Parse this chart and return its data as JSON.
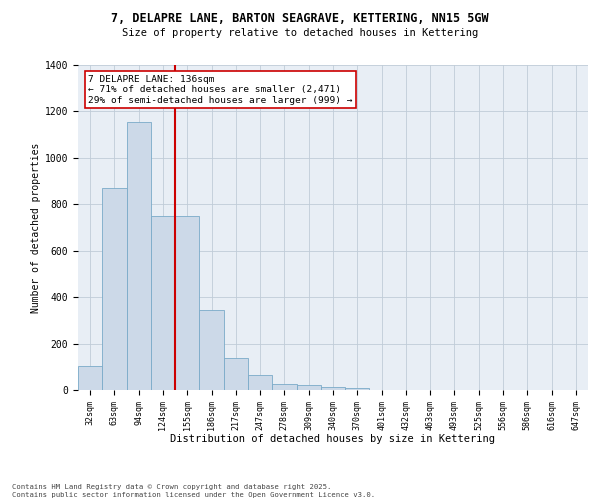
{
  "title_line1": "7, DELAPRE LANE, BARTON SEAGRAVE, KETTERING, NN15 5GW",
  "title_line2": "Size of property relative to detached houses in Kettering",
  "xlabel": "Distribution of detached houses by size in Kettering",
  "ylabel": "Number of detached properties",
  "bar_color": "#ccd9e8",
  "bar_edge_color": "#7aaac8",
  "categories": [
    "32sqm",
    "63sqm",
    "94sqm",
    "124sqm",
    "155sqm",
    "186sqm",
    "217sqm",
    "247sqm",
    "278sqm",
    "309sqm",
    "340sqm",
    "370sqm",
    "401sqm",
    "432sqm",
    "463sqm",
    "493sqm",
    "525sqm",
    "556sqm",
    "586sqm",
    "616sqm",
    "647sqm"
  ],
  "values": [
    105,
    870,
    1155,
    750,
    750,
    345,
    140,
    65,
    28,
    20,
    13,
    9,
    0,
    0,
    0,
    0,
    0,
    0,
    0,
    0,
    0
  ],
  "vline_color": "#cc0000",
  "annotation_text": "7 DELAPRE LANE: 136sqm\n← 71% of detached houses are smaller (2,471)\n29% of semi-detached houses are larger (999) →",
  "annotation_box_color": "white",
  "annotation_box_edge": "#cc0000",
  "ylim": [
    0,
    1400
  ],
  "yticks": [
    0,
    200,
    400,
    600,
    800,
    1000,
    1200,
    1400
  ],
  "grid_color": "#c0ccd8",
  "bg_color": "#e8eef5",
  "footnote": "Contains HM Land Registry data © Crown copyright and database right 2025.\nContains public sector information licensed under the Open Government Licence v3.0."
}
